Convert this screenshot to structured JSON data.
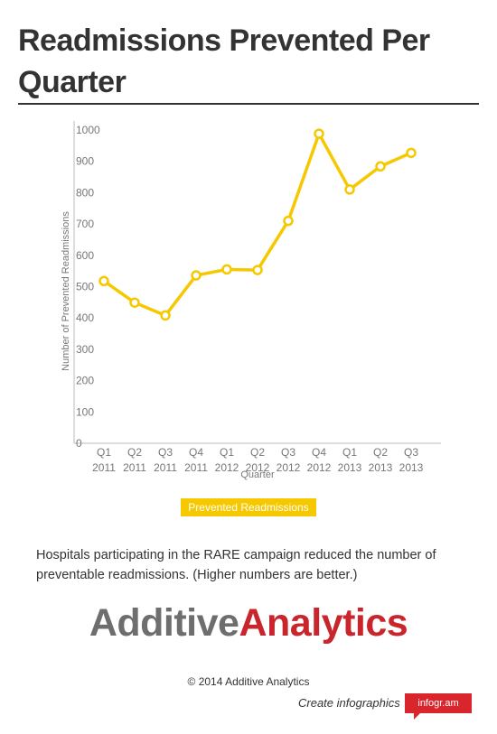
{
  "title": "Readmissions Prevented Per Quarter",
  "chart_data": {
    "type": "line",
    "categories": [
      [
        "Q1",
        "2011"
      ],
      [
        "Q2",
        "2011"
      ],
      [
        "Q3",
        "2011"
      ],
      [
        "Q4",
        "2011"
      ],
      [
        "Q1",
        "2012"
      ],
      [
        "Q2",
        "2012"
      ],
      [
        "Q3",
        "2012"
      ],
      [
        "Q4",
        "2012"
      ],
      [
        "Q1",
        "2013"
      ],
      [
        "Q2",
        "2013"
      ],
      [
        "Q3",
        "2013"
      ]
    ],
    "series": [
      {
        "name": "Prevented Readmissions",
        "values": [
          518,
          449,
          408,
          536,
          555,
          553,
          710,
          988,
          810,
          884,
          927
        ]
      }
    ],
    "xlabel": "Quarter",
    "ylabel": "Number of Prevented Readmissions",
    "ylim": [
      0,
      1000
    ],
    "yticks": [
      0,
      100,
      200,
      300,
      400,
      500,
      600,
      700,
      800,
      900,
      1000
    ],
    "grid": false,
    "legend_position": "bottom",
    "line_color": "#f5c800"
  },
  "legend_label": "Prevented Readmissions",
  "description": "Hospitals participating in the RARE campaign reduced the number of preventable readmissions. (Higher numbers are better.)",
  "logo": {
    "part1": "Additive",
    "part2": "Analytics"
  },
  "copyright": "© 2014 Additive Analytics",
  "credit": {
    "text": "Create infographics",
    "badge": "infogr.am"
  }
}
